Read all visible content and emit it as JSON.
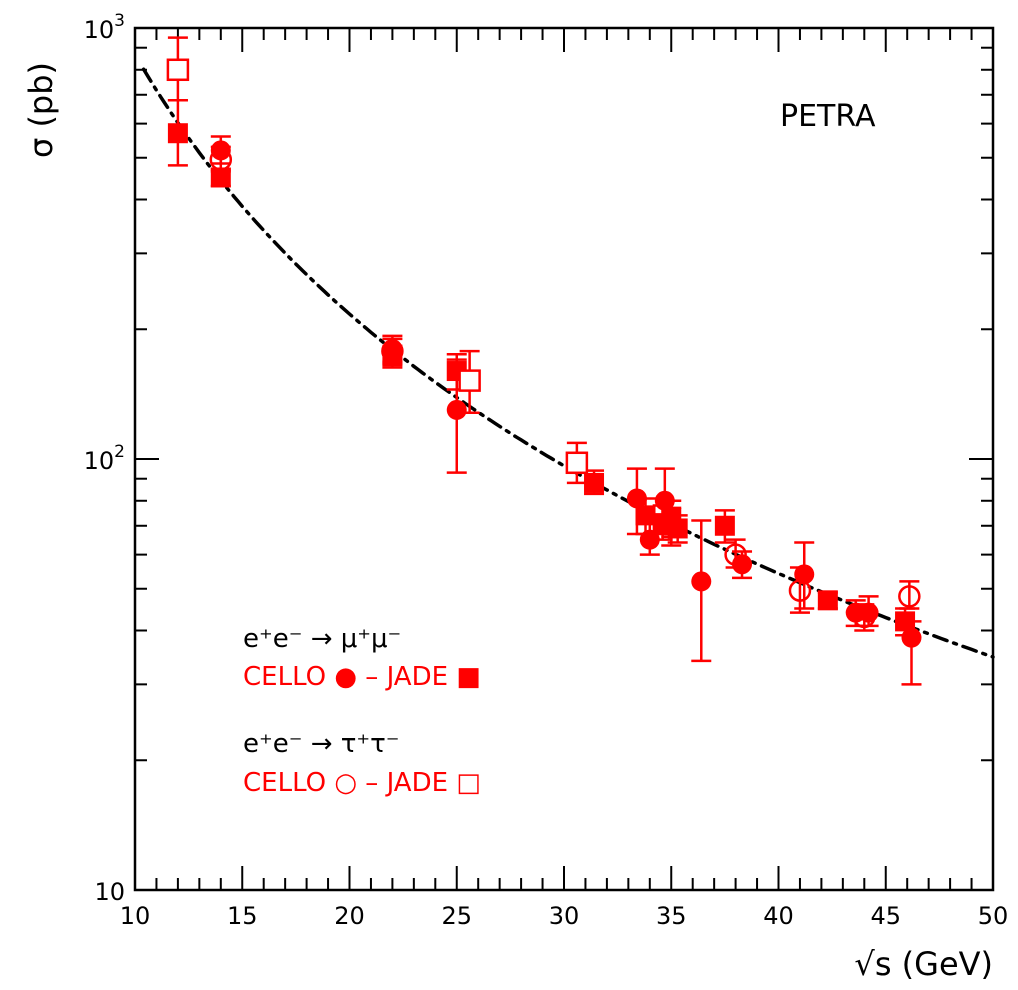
{
  "chart_data": {
    "type": "scatter",
    "title": "PETRA",
    "xlabel": "√s (GeV)",
    "ylabel": "σ (pb)",
    "xlim": [
      10,
      50
    ],
    "ylim": [
      10,
      1000
    ],
    "yscale": "log",
    "x_ticks": [
      "10",
      "15",
      "20",
      "25",
      "30",
      "35",
      "40",
      "45",
      "50"
    ],
    "y_ticks": [
      {
        "base": "10",
        "exp": ""
      },
      {
        "base": "10",
        "exp": "2"
      },
      {
        "base": "10",
        "exp": "3"
      }
    ],
    "grid": false,
    "legend": {
      "placement": "lower-left",
      "groups": [
        {
          "reaction": "e⁺e⁻ → μ⁺μ⁻",
          "label": "CELLO ● – JADE ■"
        },
        {
          "reaction": "e⁺e⁻ → τ⁺τ⁻",
          "label": "CELLO ○ – JADE □"
        }
      ]
    },
    "colors": {
      "data": "#ff0000",
      "curve": "#000000",
      "axes": "#000000"
    },
    "series": [
      {
        "experiment": "CELLO",
        "channel": "mu",
        "marker": "filled-circle",
        "points": [
          {
            "x": 14.0,
            "y": 520,
            "yerr": [
              485,
              560
            ]
          },
          {
            "x": 22.0,
            "y": 180,
            "yerr": [
              168,
              193
            ]
          },
          {
            "x": 25.0,
            "y": 130,
            "yerr": [
              93,
              170
            ]
          },
          {
            "x": 33.4,
            "y": 81,
            "yerr": [
              67,
              95
            ]
          },
          {
            "x": 34.0,
            "y": 65,
            "yerr": [
              60,
              71
            ]
          },
          {
            "x": 34.7,
            "y": 80,
            "yerr": [
              67,
              95
            ]
          },
          {
            "x": 35.0,
            "y": 70,
            "yerr": [
              63,
              77
            ]
          },
          {
            "x": 36.4,
            "y": 52,
            "yerr": [
              34,
              72
            ]
          },
          {
            "x": 38.3,
            "y": 57,
            "yerr": [
              53,
              61
            ]
          },
          {
            "x": 41.2,
            "y": 54,
            "yerr": [
              45,
              64
            ]
          },
          {
            "x": 43.6,
            "y": 44,
            "yerr": [
              41,
              47
            ]
          },
          {
            "x": 44.2,
            "y": 44,
            "yerr": [
              41,
              48
            ]
          },
          {
            "x": 46.2,
            "y": 38.5,
            "yerr": [
              30,
              42
            ]
          }
        ]
      },
      {
        "experiment": "JADE",
        "channel": "mu",
        "marker": "filled-square",
        "points": [
          {
            "x": 12.0,
            "y": 570,
            "yerr": [
              480,
              680
            ]
          },
          {
            "x": 14.0,
            "y": 450,
            "yerr": [
              430,
              470
            ]
          },
          {
            "x": 22.0,
            "y": 173,
            "yerr": [
              163,
              183
            ]
          },
          {
            "x": 25.0,
            "y": 160,
            "yerr": [
              145,
              175
            ]
          },
          {
            "x": 31.4,
            "y": 88,
            "yerr": [
              83,
              94
            ]
          },
          {
            "x": 33.8,
            "y": 74,
            "yerr": [
              67,
              81
            ]
          },
          {
            "x": 34.6,
            "y": 71,
            "yerr": [
              65,
              78
            ]
          },
          {
            "x": 35.0,
            "y": 73,
            "yerr": [
              66,
              80
            ]
          },
          {
            "x": 35.3,
            "y": 69,
            "yerr": [
              64,
              74
            ]
          },
          {
            "x": 37.5,
            "y": 70,
            "yerr": [
              64,
              76
            ]
          },
          {
            "x": 42.3,
            "y": 47,
            "yerr": [
              45,
              49
            ]
          },
          {
            "x": 45.9,
            "y": 42,
            "yerr": [
              39,
              45
            ]
          }
        ]
      },
      {
        "experiment": "CELLO",
        "channel": "tau",
        "marker": "open-circle",
        "points": [
          {
            "x": 14.0,
            "y": 495,
            "yerr": [
              465,
              530
            ]
          },
          {
            "x": 22.0,
            "y": 178,
            "yerr": [
              166,
              190
            ]
          },
          {
            "x": 38.0,
            "y": 60,
            "yerr": [
              56,
              65
            ]
          },
          {
            "x": 41.0,
            "y": 49.5,
            "yerr": [
              44,
              56
            ]
          },
          {
            "x": 44.0,
            "y": 43,
            "yerr": [
              40,
              46
            ]
          },
          {
            "x": 46.1,
            "y": 48,
            "yerr": [
              45,
              52
            ]
          }
        ]
      },
      {
        "experiment": "JADE",
        "channel": "tau",
        "marker": "open-square",
        "points": [
          {
            "x": 12.0,
            "y": 800,
            "yerr": [
              680,
              950
            ]
          },
          {
            "x": 25.6,
            "y": 152,
            "yerr": [
              128,
              178
            ]
          },
          {
            "x": 30.6,
            "y": 98,
            "yerr": [
              88,
              109
            ]
          }
        ]
      }
    ],
    "curve": {
      "style": "dash-dot",
      "formula": "sigma = 86.8 / s",
      "x_range": [
        10.4,
        50
      ]
    }
  }
}
